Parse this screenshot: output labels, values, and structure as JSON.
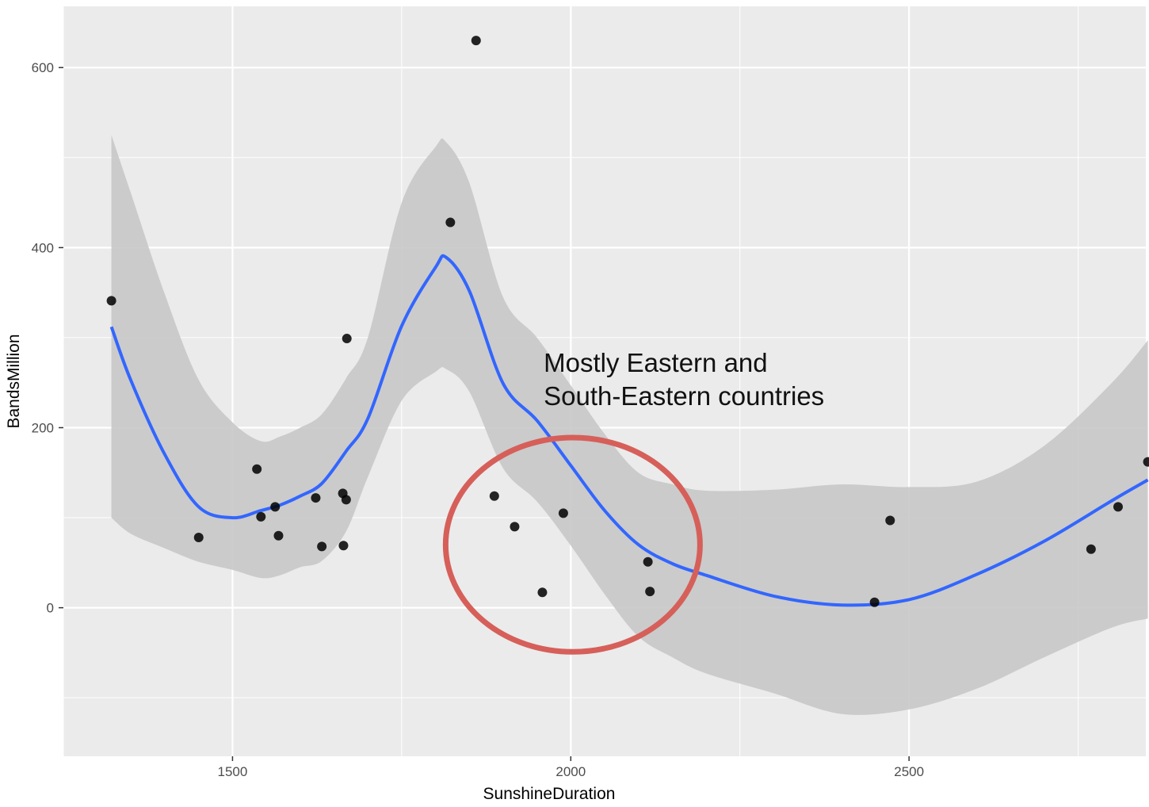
{
  "chart_data": {
    "type": "scatter",
    "xlabel": "SunshineDuration",
    "ylabel": "BandsMillion",
    "xlim": [
      1250,
      2850
    ],
    "ylim": [
      -165,
      668
    ],
    "x_ticks": [
      1500,
      2000,
      2500
    ],
    "y_ticks": [
      0,
      200,
      400,
      600
    ],
    "x_tick_labels": [
      "1500",
      "2000",
      "2500"
    ],
    "y_tick_labels": [
      "0",
      "200",
      "400",
      "600"
    ],
    "points": [
      {
        "x": 1321,
        "y": 341
      },
      {
        "x": 1450,
        "y": 78
      },
      {
        "x": 1536,
        "y": 154
      },
      {
        "x": 1542,
        "y": 101
      },
      {
        "x": 1563,
        "y": 112
      },
      {
        "x": 1568,
        "y": 80
      },
      {
        "x": 1623,
        "y": 122
      },
      {
        "x": 1632,
        "y": 68
      },
      {
        "x": 1663,
        "y": 127
      },
      {
        "x": 1664,
        "y": 69
      },
      {
        "x": 1668,
        "y": 120
      },
      {
        "x": 1669,
        "y": 299
      },
      {
        "x": 1822,
        "y": 428
      },
      {
        "x": 1860,
        "y": 630
      },
      {
        "x": 1887,
        "y": 124
      },
      {
        "x": 1917,
        "y": 90
      },
      {
        "x": 1958,
        "y": 17
      },
      {
        "x": 1989,
        "y": 105
      },
      {
        "x": 2114,
        "y": 51
      },
      {
        "x": 2117,
        "y": 18
      },
      {
        "x": 2449,
        "y": 6
      },
      {
        "x": 2472,
        "y": 97
      },
      {
        "x": 2769,
        "y": 65
      },
      {
        "x": 2809,
        "y": 112
      },
      {
        "x": 2853,
        "y": 162
      }
    ],
    "smooth": {
      "x": [
        1321,
        1350,
        1400,
        1450,
        1500,
        1542,
        1570,
        1600,
        1632,
        1668,
        1700,
        1750,
        1800,
        1816,
        1850,
        1900,
        1950,
        2000,
        2050,
        2100,
        2150,
        2200,
        2300,
        2400,
        2500,
        2600,
        2700,
        2800,
        2853
      ],
      "y": [
        312,
        252,
        170,
        112,
        100,
        108,
        114,
        124,
        138,
        174,
        210,
        313,
        378,
        389,
        352,
        249,
        208,
        158,
        108,
        70,
        49,
        36,
        13,
        3,
        9,
        37,
        74,
        119,
        142
      ],
      "upper": [
        525,
        460,
        348,
        253,
        206,
        185,
        190,
        200,
        215,
        255,
        300,
        450,
        512,
        517,
        472,
        345,
        300,
        247,
        193,
        150,
        137,
        130,
        131,
        137,
        134,
        140,
        180,
        250,
        297
      ],
      "lower": [
        100,
        82,
        66,
        51,
        42,
        33,
        36,
        45,
        52,
        85,
        145,
        230,
        262,
        265,
        240,
        155,
        118,
        69,
        15,
        -32,
        -55,
        -73,
        -95,
        -118,
        -113,
        -90,
        -55,
        -22,
        -12
      ]
    },
    "annotation": {
      "lines": [
        "Mostly Eastern and",
        "South-Eastern countries"
      ],
      "text_x": 1960,
      "text_y": [
        262,
        225
      ],
      "circle_cx": 2003,
      "circle_cy": 70,
      "circle_rx": 188,
      "circle_ry": 119
    },
    "colors": {
      "panel": "#ebebeb",
      "grid_major": "#ffffff",
      "ribbon": "#c8c8c8",
      "line": "#3366ff",
      "point": "#000000",
      "annotation_circle": "#d65f5a"
    }
  }
}
